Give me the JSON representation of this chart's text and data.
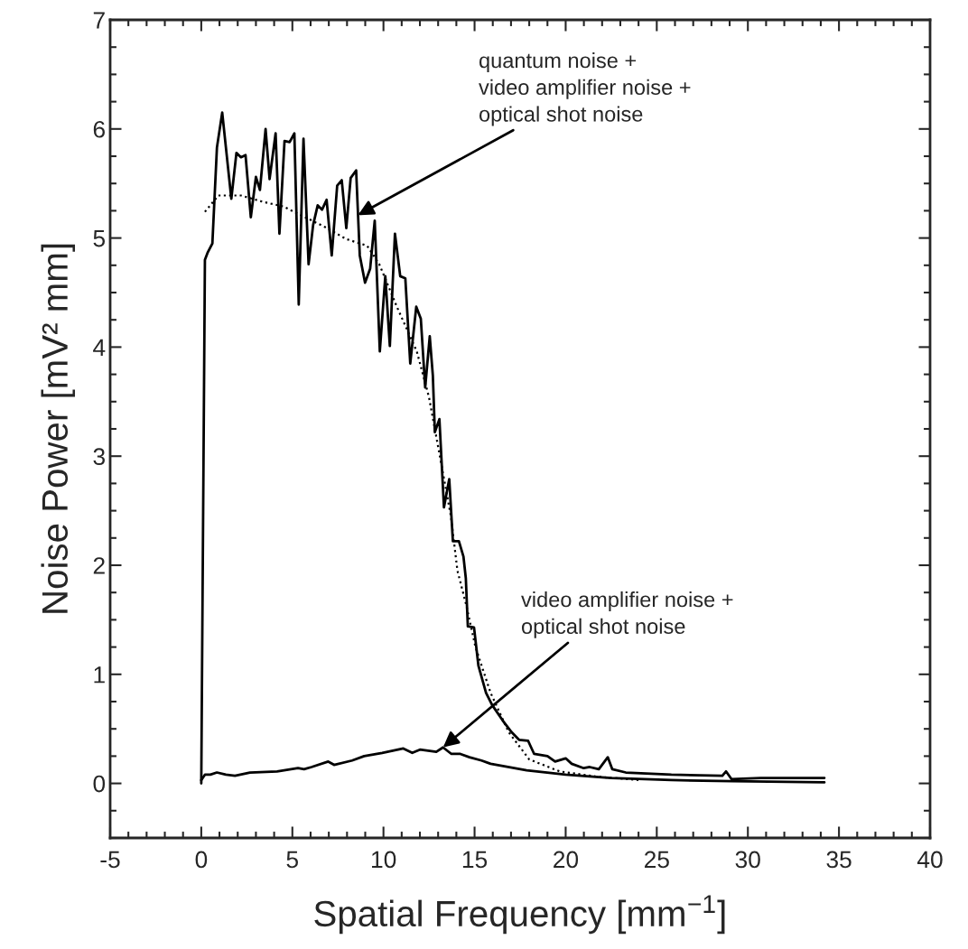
{
  "chart_data": {
    "type": "line",
    "xlabel": "Spatial Frequency [mm$^{−1}$]",
    "ylabel": "Noise Power [mV² mm]",
    "xlim": [
      -5,
      40
    ],
    "ylim": [
      -0.5,
      7
    ],
    "xticks": [
      -5,
      0,
      5,
      10,
      15,
      20,
      25,
      30,
      35,
      40
    ],
    "yticks": [
      0,
      1,
      2,
      3,
      4,
      5,
      6,
      7
    ],
    "grid": false,
    "legend": false,
    "marker": "none",
    "series": [
      {
        "color": "#000000",
        "line_style": "solid",
        "x": [
          0,
          0.2,
          0.36,
          0.61,
          0.86,
          1.15,
          1.65,
          1.93,
          2.18,
          2.43,
          2.72,
          3.0,
          3.22,
          3.53,
          3.75,
          4.08,
          4.29,
          4.57,
          4.85,
          5.11,
          5.35,
          5.61,
          5.89,
          6.14,
          6.39,
          6.63,
          6.88,
          7.16,
          7.46,
          7.71,
          7.96,
          8.2,
          8.5,
          8.7,
          8.99,
          9.27,
          9.52,
          9.8,
          10.1,
          10.35,
          10.63,
          10.92,
          11.2,
          11.47,
          11.8,
          12.05,
          12.29,
          12.54,
          12.71,
          12.82,
          13.07,
          13.32,
          13.61,
          13.81,
          14.14,
          14.39,
          14.52,
          14.63,
          14.97,
          15.21,
          15.63,
          15.96,
          16.53,
          17.03,
          17.44,
          17.94,
          18.27,
          19.0,
          19.42,
          20.0,
          20.33,
          20.99,
          21.32,
          21.82,
          22.31,
          22.56,
          23.3,
          25.8,
          28.6,
          28.8,
          29.1,
          30.7,
          34.2
        ],
        "values": [
          0,
          4.8,
          4.87,
          4.95,
          5.83,
          6.15,
          5.36,
          5.78,
          5.74,
          5.76,
          5.19,
          5.56,
          5.44,
          6.0,
          5.54,
          5.96,
          5.04,
          5.89,
          5.88,
          5.96,
          4.39,
          5.91,
          4.76,
          5.12,
          5.3,
          5.26,
          5.35,
          4.84,
          5.48,
          5.53,
          5.09,
          5.55,
          5.62,
          4.84,
          4.59,
          4.72,
          5.16,
          3.96,
          4.65,
          4.01,
          5.04,
          4.65,
          4.63,
          3.85,
          4.37,
          4.26,
          3.63,
          4.1,
          3.74,
          3.22,
          3.34,
          2.53,
          2.79,
          2.22,
          2.22,
          2.08,
          1.88,
          1.44,
          1.43,
          1.08,
          0.83,
          0.72,
          0.58,
          0.47,
          0.4,
          0.39,
          0.27,
          0.25,
          0.2,
          0.23,
          0.18,
          0.14,
          0.15,
          0.13,
          0.24,
          0.13,
          0.1,
          0.08,
          0.07,
          0.11,
          0.04,
          0.05,
          0.05
        ]
      },
      {
        "color": "#000000",
        "line_style": "solid",
        "x": [
          0,
          0.2,
          0.5,
          0.86,
          1.35,
          1.85,
          2.67,
          4.16,
          5.31,
          5.64,
          6.05,
          6.97,
          7.29,
          8.28,
          8.94,
          9.93,
          11.09,
          11.58,
          12.0,
          12.9,
          13.27,
          13.73,
          14.22,
          14.72,
          15.38,
          15.88,
          17.86,
          20.0,
          22.48,
          25.8,
          29.1,
          34.2
        ],
        "values": [
          0.03,
          0.08,
          0.08,
          0.1,
          0.08,
          0.07,
          0.1,
          0.11,
          0.14,
          0.13,
          0.15,
          0.2,
          0.17,
          0.21,
          0.25,
          0.28,
          0.32,
          0.28,
          0.31,
          0.29,
          0.33,
          0.27,
          0.27,
          0.24,
          0.21,
          0.18,
          0.12,
          0.08,
          0.05,
          0.03,
          0.02,
          0.01
        ]
      },
      {
        "color": "#000000",
        "line_style": "dotted",
        "x": [
          0.2,
          0.94,
          2.18,
          3.42,
          4.49,
          6.8,
          7.96,
          9.1,
          9.77,
          10.76,
          11.83,
          12.5,
          13.15,
          13.7,
          14.06,
          14.55,
          15.05,
          15.88,
          16.87,
          18.0,
          19.67,
          21.8,
          24.1
        ],
        "values": [
          5.24,
          5.39,
          5.39,
          5.33,
          5.29,
          5.1,
          4.99,
          4.93,
          4.76,
          4.36,
          3.96,
          3.54,
          2.95,
          2.45,
          1.95,
          1.63,
          1.25,
          0.83,
          0.47,
          0.22,
          0.11,
          0.06,
          0.03
        ]
      }
    ],
    "annotations": [
      {
        "text": "quantum noise +\nvideo amplifier noise +\noptical shot noise",
        "x": 8.6,
        "y": 5.21
      },
      {
        "text": "video amplifier noise +\noptical shot noise",
        "x": 13.27,
        "y": 0.33
      }
    ]
  }
}
